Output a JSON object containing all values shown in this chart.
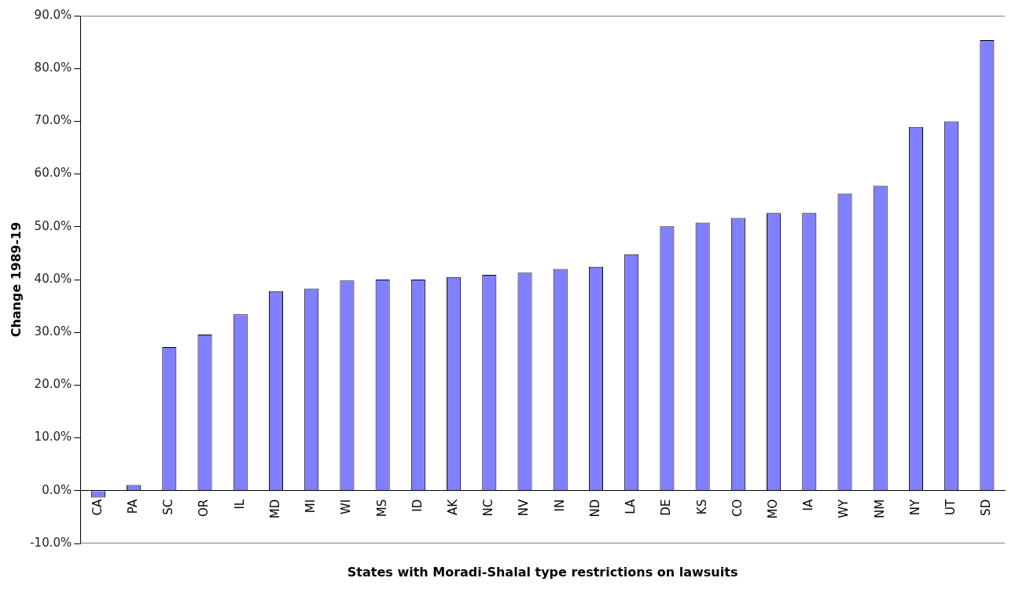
{
  "chart_data": {
    "type": "bar",
    "xlabel": "States with Moradi-Shalal type restrictions on lawsuits",
    "ylabel": "Change 1989-19",
    "categories": [
      "CA",
      "PA",
      "SC",
      "OR",
      "IL",
      "MD",
      "MI",
      "WI",
      "MS",
      "ID",
      "AK",
      "NC",
      "NV",
      "IN",
      "ND",
      "LA",
      "DE",
      "KS",
      "CO",
      "MO",
      "IA",
      "WY",
      "NM",
      "NY",
      "UT",
      "SD"
    ],
    "values": [
      -1.3,
      1.1,
      27.2,
      29.6,
      33.4,
      37.8,
      38.3,
      39.8,
      40.0,
      40.0,
      40.5,
      40.9,
      41.3,
      42.0,
      42.4,
      44.8,
      50.1,
      50.8,
      51.7,
      52.6,
      52.6,
      56.3,
      57.8,
      68.9,
      70.0,
      85.4
    ],
    "color": "#8080ff",
    "ylim": [
      -10,
      90
    ],
    "yticks": [
      {
        "value": -10,
        "label": "-10.0%"
      },
      {
        "value": 0,
        "label": "0.0%"
      },
      {
        "value": 10,
        "label": "10.0%"
      },
      {
        "value": 20,
        "label": "20.0%"
      },
      {
        "value": 30,
        "label": "30.0%"
      },
      {
        "value": 40,
        "label": "40.0%"
      },
      {
        "value": 50,
        "label": "50.0%"
      },
      {
        "value": 60,
        "label": "60.0%"
      },
      {
        "value": 70,
        "label": "70.0%"
      },
      {
        "value": 80,
        "label": "80.0%"
      },
      {
        "value": 90,
        "label": "90.0%"
      }
    ],
    "grid": false,
    "legend": false
  }
}
